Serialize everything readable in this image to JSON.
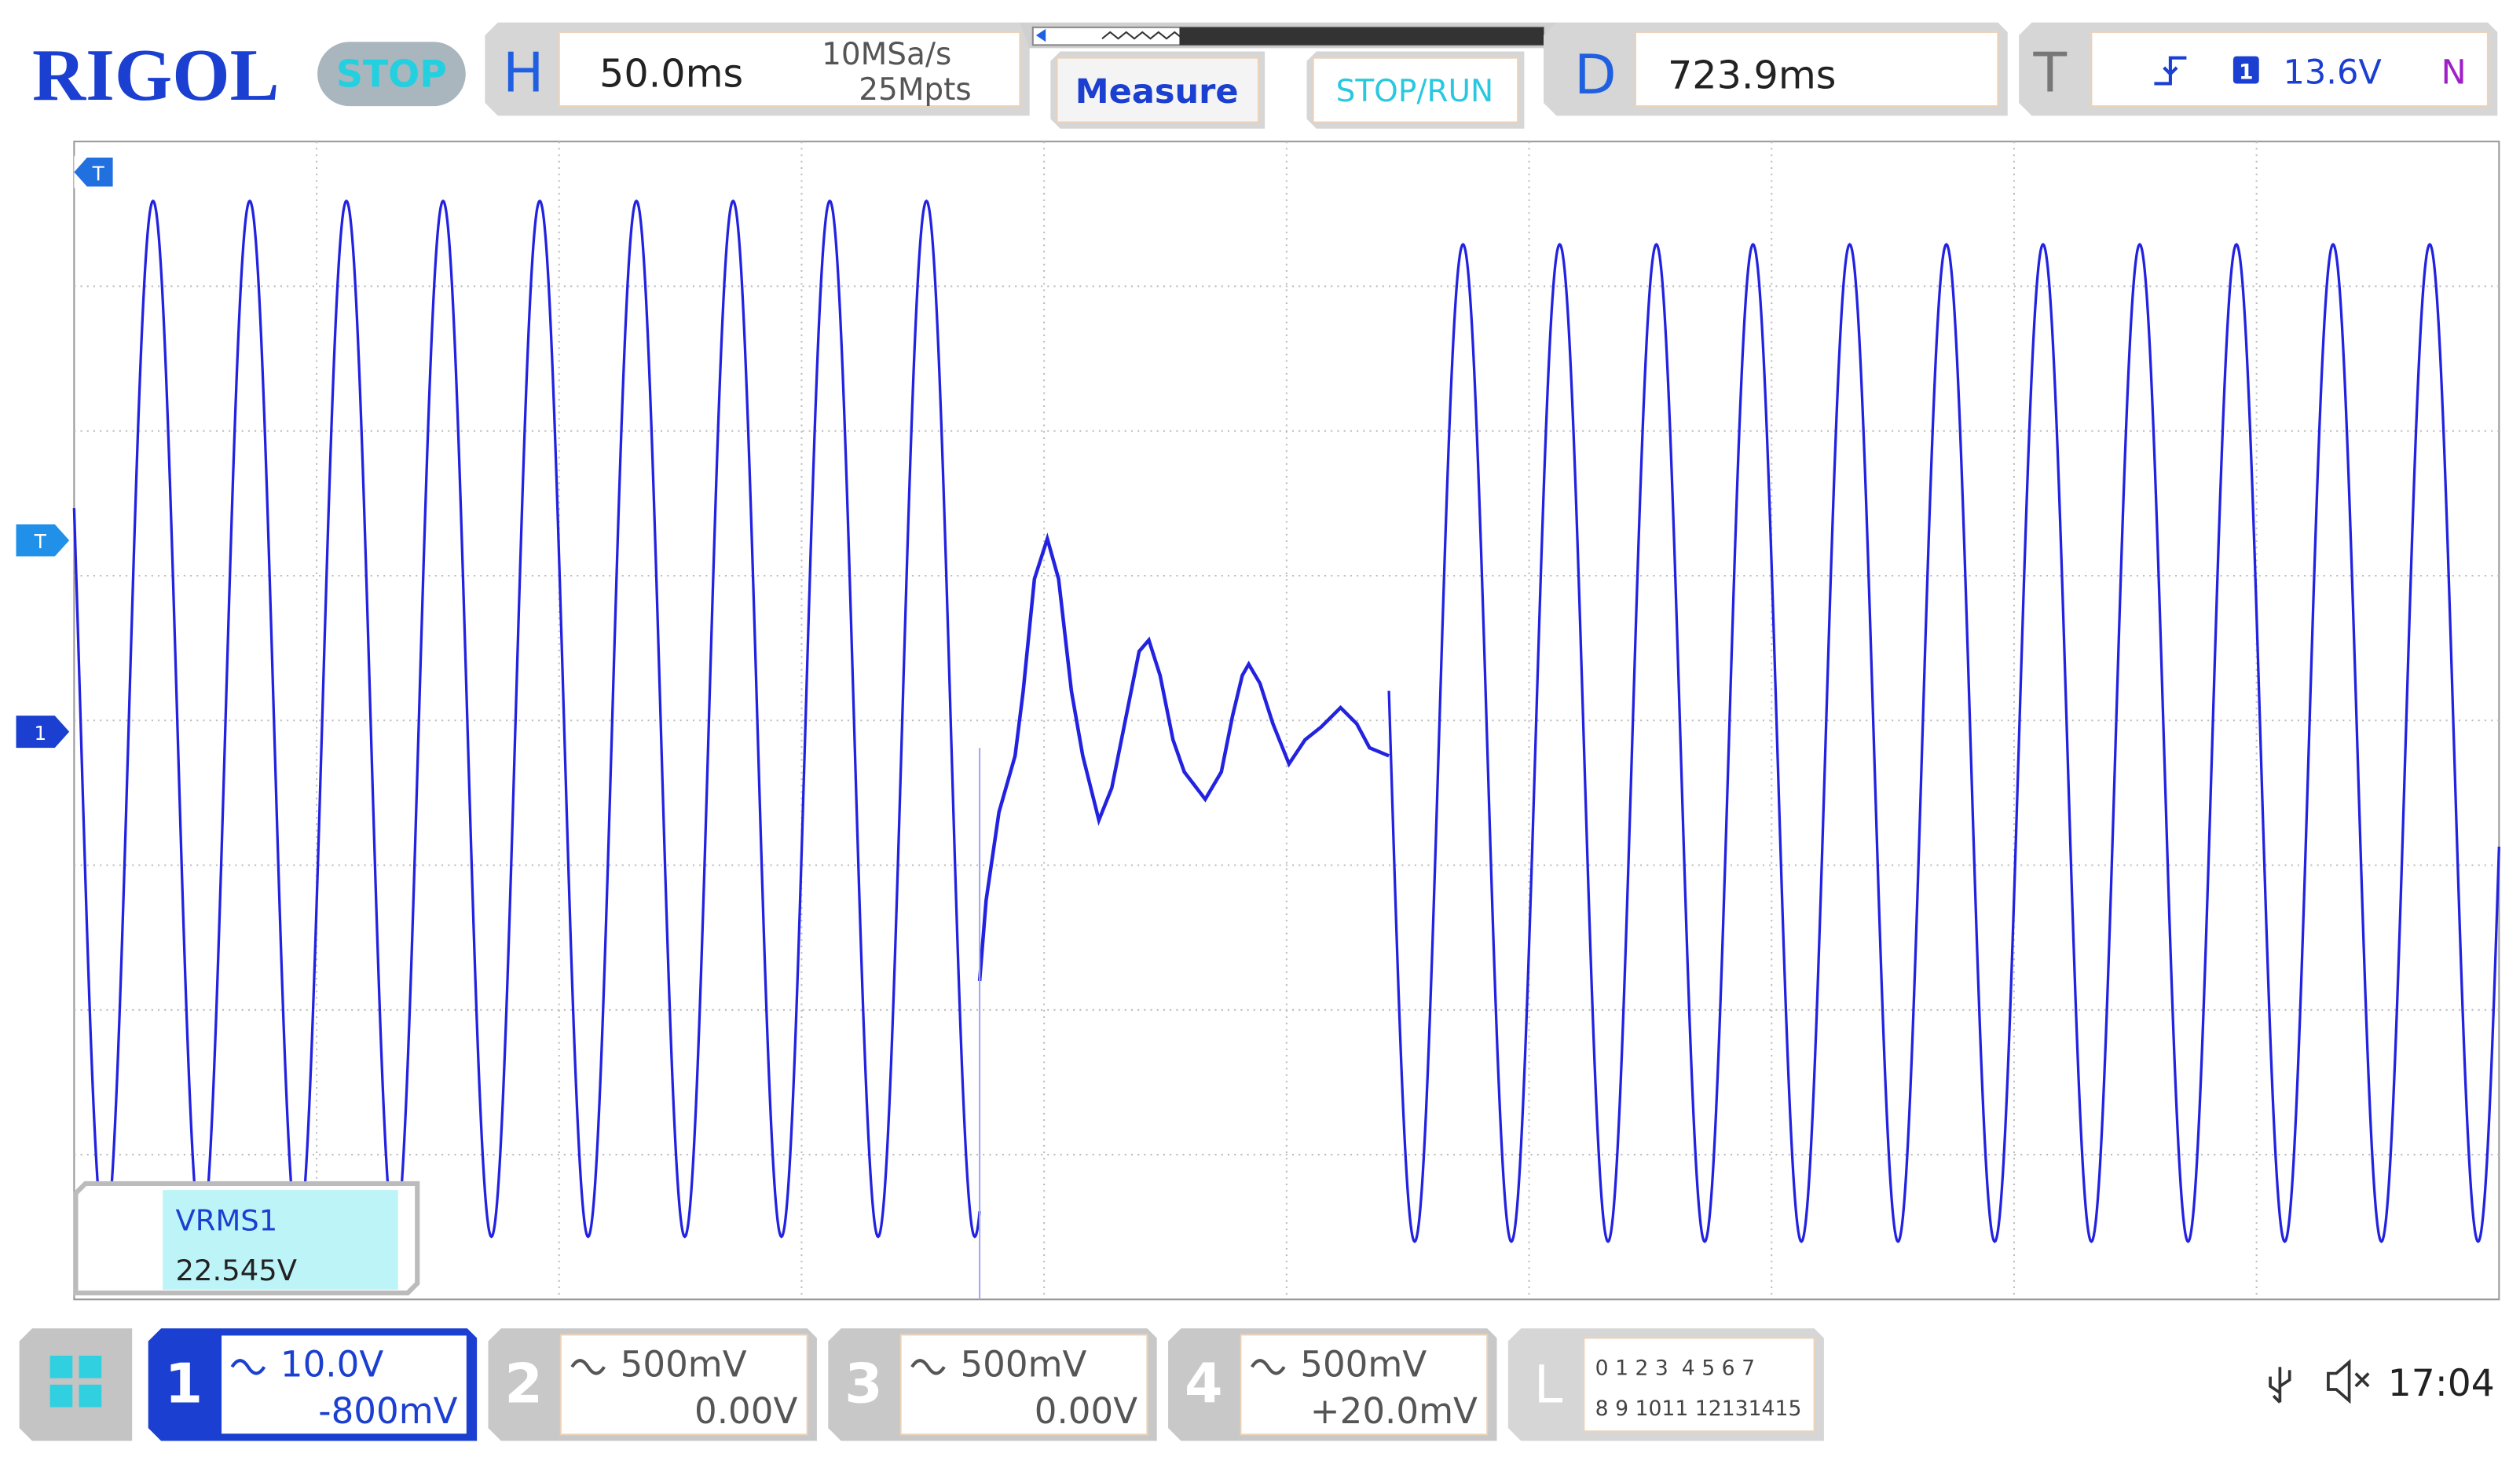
{
  "header": {
    "brand": "RIGOL",
    "status": "STOP",
    "horizontal": {
      "label": "H",
      "timebase": "50.0ms",
      "sample_rate": "10MSa/s",
      "memory_depth": "25Mpts"
    },
    "buttons": [
      "Measure",
      "STOP/RUN"
    ],
    "delay": {
      "label": "D",
      "value": "723.9ms"
    },
    "trigger": {
      "label": "T",
      "source": "1",
      "level": "13.6V",
      "mode": "N"
    }
  },
  "screen": {
    "markers": {
      "trigger_position": "T",
      "trigger_level": "T",
      "channel_1": "1"
    },
    "measurement": {
      "name": "VRMS1",
      "value": "22.545V"
    }
  },
  "channels": [
    {
      "number": "1",
      "scale": "10.0V",
      "offset": "-800mV"
    },
    {
      "number": "2",
      "scale": "500mV",
      "offset": "0.00V"
    },
    {
      "number": "3",
      "scale": "500mV",
      "offset": "0.00V"
    },
    {
      "number": "4",
      "scale": "500mV",
      "offset": "+20.0mV"
    }
  ],
  "logic": {
    "label": "L",
    "row1": "0 1 2 3  4 5 6 7",
    "row2": "8 9 1011 12131415"
  },
  "status_bar": {
    "time": "17:04"
  }
}
